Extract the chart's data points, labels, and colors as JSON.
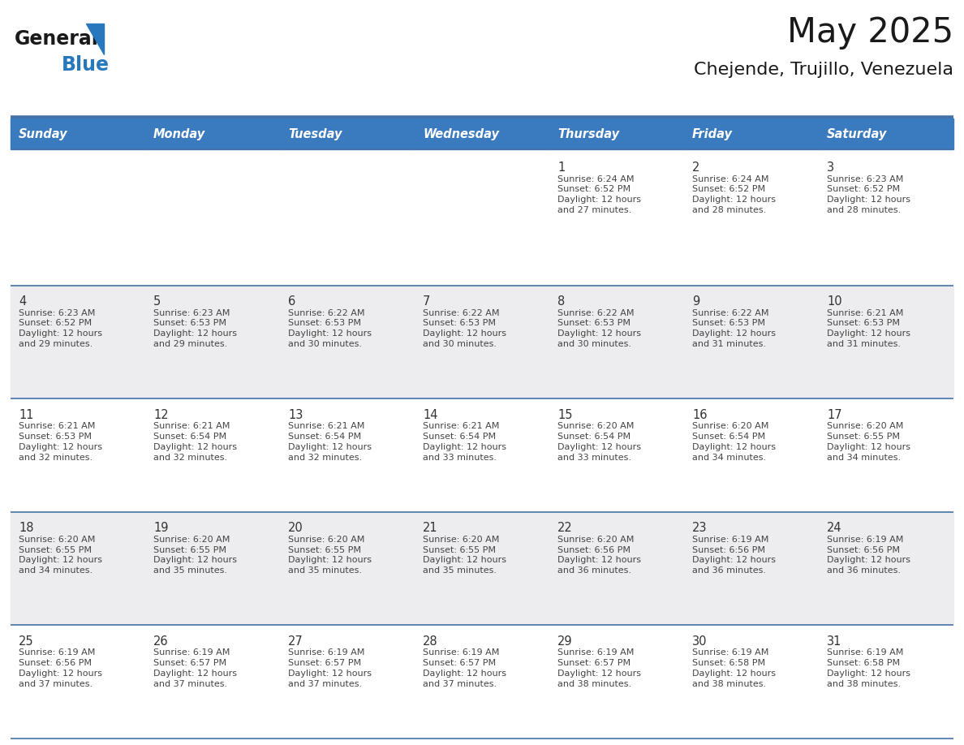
{
  "title": "May 2025",
  "subtitle": "Chejende, Trujillo, Venezuela",
  "days_of_week": [
    "Sunday",
    "Monday",
    "Tuesday",
    "Wednesday",
    "Thursday",
    "Friday",
    "Saturday"
  ],
  "header_bg": "#3a7abf",
  "header_text": "#ffffff",
  "row0_bg": "#ffffff",
  "row_odd_bg": "#ededef",
  "row_even_bg": "#ffffff",
  "day_number_color": "#333333",
  "cell_text_color": "#444444",
  "line_color": "#4472a8",
  "logo_general_color": "#1a1a1a",
  "logo_blue_color": "#2878be",
  "title_color": "#1a1a1a",
  "subtitle_color": "#1a1a1a",
  "calendar_data": [
    [
      "",
      "",
      "",
      "",
      "1\nSunrise: 6:24 AM\nSunset: 6:52 PM\nDaylight: 12 hours\nand 27 minutes.",
      "2\nSunrise: 6:24 AM\nSunset: 6:52 PM\nDaylight: 12 hours\nand 28 minutes.",
      "3\nSunrise: 6:23 AM\nSunset: 6:52 PM\nDaylight: 12 hours\nand 28 minutes."
    ],
    [
      "4\nSunrise: 6:23 AM\nSunset: 6:52 PM\nDaylight: 12 hours\nand 29 minutes.",
      "5\nSunrise: 6:23 AM\nSunset: 6:53 PM\nDaylight: 12 hours\nand 29 minutes.",
      "6\nSunrise: 6:22 AM\nSunset: 6:53 PM\nDaylight: 12 hours\nand 30 minutes.",
      "7\nSunrise: 6:22 AM\nSunset: 6:53 PM\nDaylight: 12 hours\nand 30 minutes.",
      "8\nSunrise: 6:22 AM\nSunset: 6:53 PM\nDaylight: 12 hours\nand 30 minutes.",
      "9\nSunrise: 6:22 AM\nSunset: 6:53 PM\nDaylight: 12 hours\nand 31 minutes.",
      "10\nSunrise: 6:21 AM\nSunset: 6:53 PM\nDaylight: 12 hours\nand 31 minutes."
    ],
    [
      "11\nSunrise: 6:21 AM\nSunset: 6:53 PM\nDaylight: 12 hours\nand 32 minutes.",
      "12\nSunrise: 6:21 AM\nSunset: 6:54 PM\nDaylight: 12 hours\nand 32 minutes.",
      "13\nSunrise: 6:21 AM\nSunset: 6:54 PM\nDaylight: 12 hours\nand 32 minutes.",
      "14\nSunrise: 6:21 AM\nSunset: 6:54 PM\nDaylight: 12 hours\nand 33 minutes.",
      "15\nSunrise: 6:20 AM\nSunset: 6:54 PM\nDaylight: 12 hours\nand 33 minutes.",
      "16\nSunrise: 6:20 AM\nSunset: 6:54 PM\nDaylight: 12 hours\nand 34 minutes.",
      "17\nSunrise: 6:20 AM\nSunset: 6:55 PM\nDaylight: 12 hours\nand 34 minutes."
    ],
    [
      "18\nSunrise: 6:20 AM\nSunset: 6:55 PM\nDaylight: 12 hours\nand 34 minutes.",
      "19\nSunrise: 6:20 AM\nSunset: 6:55 PM\nDaylight: 12 hours\nand 35 minutes.",
      "20\nSunrise: 6:20 AM\nSunset: 6:55 PM\nDaylight: 12 hours\nand 35 minutes.",
      "21\nSunrise: 6:20 AM\nSunset: 6:55 PM\nDaylight: 12 hours\nand 35 minutes.",
      "22\nSunrise: 6:20 AM\nSunset: 6:56 PM\nDaylight: 12 hours\nand 36 minutes.",
      "23\nSunrise: 6:19 AM\nSunset: 6:56 PM\nDaylight: 12 hours\nand 36 minutes.",
      "24\nSunrise: 6:19 AM\nSunset: 6:56 PM\nDaylight: 12 hours\nand 36 minutes."
    ],
    [
      "25\nSunrise: 6:19 AM\nSunset: 6:56 PM\nDaylight: 12 hours\nand 37 minutes.",
      "26\nSunrise: 6:19 AM\nSunset: 6:57 PM\nDaylight: 12 hours\nand 37 minutes.",
      "27\nSunrise: 6:19 AM\nSunset: 6:57 PM\nDaylight: 12 hours\nand 37 minutes.",
      "28\nSunrise: 6:19 AM\nSunset: 6:57 PM\nDaylight: 12 hours\nand 37 minutes.",
      "29\nSunrise: 6:19 AM\nSunset: 6:57 PM\nDaylight: 12 hours\nand 38 minutes.",
      "30\nSunrise: 6:19 AM\nSunset: 6:58 PM\nDaylight: 12 hours\nand 38 minutes.",
      "31\nSunrise: 6:19 AM\nSunset: 6:58 PM\nDaylight: 12 hours\nand 38 minutes."
    ]
  ]
}
